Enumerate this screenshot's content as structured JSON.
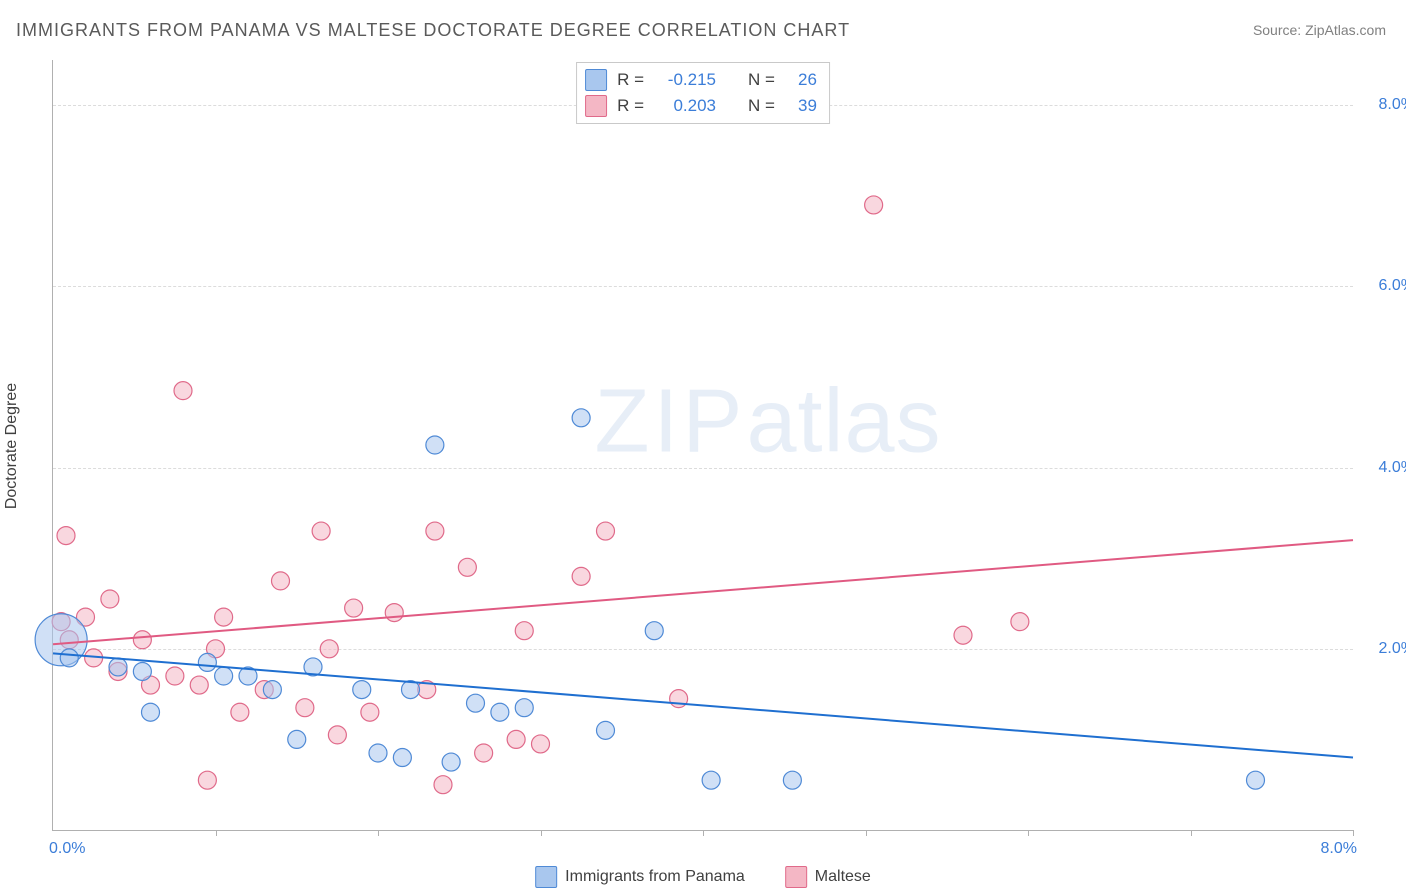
{
  "title": "IMMIGRANTS FROM PANAMA VS MALTESE DOCTORATE DEGREE CORRELATION CHART",
  "source": "Source: ZipAtlas.com",
  "ylabel": "Doctorate Degree",
  "watermark_zip": "ZIP",
  "watermark_atlas": "atlas",
  "chart": {
    "type": "scatter",
    "xlim": [
      0,
      8.0
    ],
    "ylim": [
      0,
      8.5
    ],
    "grid_y": [
      2.0,
      4.0,
      6.0,
      8.0
    ],
    "yticks": [
      "2.0%",
      "4.0%",
      "6.0%",
      "8.0%"
    ],
    "xtick_left": "0.0%",
    "xtick_right": "8.0%",
    "xtick_marks": [
      1.0,
      2.0,
      3.0,
      4.0,
      5.0,
      6.0,
      7.0,
      8.0
    ],
    "grid_color": "#dcdcdc",
    "axis_color": "#b0b0b0",
    "tick_label_color": "#3b7dd8",
    "series": {
      "panama": {
        "label": "Immigrants from Panama",
        "fill": "#a9c7ee",
        "stroke": "#4f8ad6",
        "line_color": "#1f6fd0",
        "trend": {
          "x1": 0.0,
          "y1": 1.95,
          "x2": 8.0,
          "y2": 0.8
        },
        "r_label": "R =",
        "r_value": "-0.215",
        "n_label": "N =",
        "n_value": "26",
        "radius": 9,
        "points": [
          [
            0.05,
            2.1,
            26
          ],
          [
            0.1,
            1.9,
            9
          ],
          [
            0.4,
            1.8,
            9
          ],
          [
            0.55,
            1.75,
            9
          ],
          [
            0.6,
            1.3,
            9
          ],
          [
            0.95,
            1.85,
            9
          ],
          [
            1.05,
            1.7,
            9
          ],
          [
            1.2,
            1.7,
            9
          ],
          [
            1.35,
            1.55,
            9
          ],
          [
            1.5,
            1.0,
            9
          ],
          [
            1.6,
            1.8,
            9
          ],
          [
            1.9,
            1.55,
            9
          ],
          [
            2.0,
            0.85,
            9
          ],
          [
            2.15,
            0.8,
            9
          ],
          [
            2.2,
            1.55,
            9
          ],
          [
            2.35,
            4.25,
            9
          ],
          [
            2.45,
            0.75,
            9
          ],
          [
            2.6,
            1.4,
            9
          ],
          [
            2.75,
            1.3,
            9
          ],
          [
            2.9,
            1.35,
            9
          ],
          [
            3.25,
            4.55,
            9
          ],
          [
            3.4,
            1.1,
            9
          ],
          [
            3.7,
            2.2,
            9
          ],
          [
            4.05,
            0.55,
            9
          ],
          [
            4.55,
            0.55,
            9
          ],
          [
            7.4,
            0.55,
            9
          ]
        ]
      },
      "maltese": {
        "label": "Maltese",
        "fill": "#f4b7c5",
        "stroke": "#e06a8a",
        "line_color": "#e05a82",
        "trend": {
          "x1": 0.0,
          "y1": 2.05,
          "x2": 8.0,
          "y2": 3.2
        },
        "r_label": "R =",
        "r_value": " 0.203",
        "n_label": "N =",
        "n_value": "39",
        "radius": 9,
        "points": [
          [
            0.05,
            2.3,
            9
          ],
          [
            0.08,
            3.25,
            9
          ],
          [
            0.1,
            2.1,
            9
          ],
          [
            0.2,
            2.35,
            9
          ],
          [
            0.25,
            1.9,
            9
          ],
          [
            0.4,
            1.75,
            9
          ],
          [
            0.55,
            2.1,
            9
          ],
          [
            0.6,
            1.6,
            9
          ],
          [
            0.75,
            1.7,
            9
          ],
          [
            0.8,
            4.85,
            9
          ],
          [
            0.9,
            1.6,
            9
          ],
          [
            0.95,
            0.55,
            9
          ],
          [
            1.0,
            2.0,
            9
          ],
          [
            1.05,
            2.35,
            9
          ],
          [
            1.15,
            1.3,
            9
          ],
          [
            1.3,
            1.55,
            9
          ],
          [
            1.4,
            2.75,
            9
          ],
          [
            1.55,
            1.35,
            9
          ],
          [
            1.65,
            3.3,
            9
          ],
          [
            1.7,
            2.0,
            9
          ],
          [
            1.75,
            1.05,
            9
          ],
          [
            1.85,
            2.45,
            9
          ],
          [
            1.95,
            1.3,
            9
          ],
          [
            2.1,
            2.4,
            9
          ],
          [
            2.3,
            1.55,
            9
          ],
          [
            2.35,
            3.3,
            9
          ],
          [
            2.4,
            0.5,
            9
          ],
          [
            2.55,
            2.9,
            9
          ],
          [
            2.65,
            0.85,
            9
          ],
          [
            2.85,
            1.0,
            9
          ],
          [
            2.9,
            2.2,
            9
          ],
          [
            3.0,
            0.95,
            9
          ],
          [
            3.25,
            2.8,
            9
          ],
          [
            3.4,
            3.3,
            9
          ],
          [
            3.85,
            1.45,
            9
          ],
          [
            5.05,
            6.9,
            9
          ],
          [
            5.6,
            2.15,
            9
          ],
          [
            5.95,
            2.3,
            9
          ],
          [
            0.35,
            2.55,
            9
          ]
        ]
      }
    }
  },
  "legend_swatch_border": {
    "panama": "#4f8ad6",
    "maltese": "#e06a8a"
  },
  "legend_swatch_fill": {
    "panama": "#a9c7ee",
    "maltese": "#f4b7c5"
  }
}
